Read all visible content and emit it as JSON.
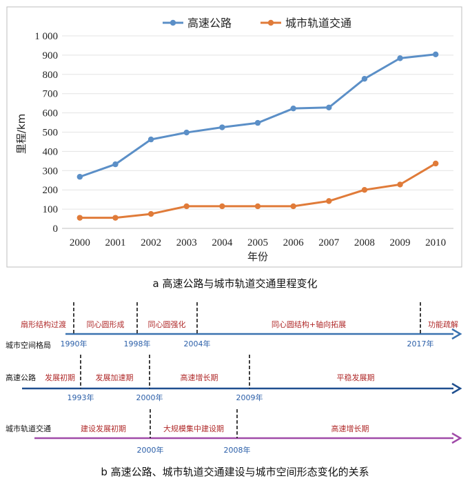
{
  "chart_data": {
    "type": "line",
    "x": [
      "2000",
      "2001",
      "2002",
      "2003",
      "2004",
      "2005",
      "2006",
      "2007",
      "2008",
      "2009",
      "2010"
    ],
    "series": [
      {
        "name": "高速公路",
        "color": "#5b8fc7",
        "values": [
          268,
          333,
          462,
          498,
          525,
          548,
          623,
          628,
          777,
          884,
          904
        ]
      },
      {
        "name": "城市轨道交通",
        "color": "#e07b39",
        "values": [
          55,
          55,
          75,
          115,
          115,
          115,
          115,
          142,
          200,
          228,
          337
        ]
      }
    ],
    "ylim": [
      0,
      1000
    ],
    "yticks": [
      "0",
      "100",
      "200",
      "300",
      "400",
      "500",
      "600",
      "700",
      "800",
      "900",
      "1 000"
    ],
    "ylabel": "里程/km",
    "xlabel": "年份",
    "grid": true,
    "legend": "top-center"
  },
  "caption_a": "a 高速公路与城市轨道交通里程变化",
  "caption_b": "b 高速公路、城市轨道交通建设与城市空间形态变化的关系",
  "timeline": {
    "rows": [
      {
        "title": "城市空间格局",
        "color": "#3a72b0",
        "years": [
          1990,
          1998,
          2004,
          2017
        ],
        "year_labels": [
          "1990年",
          "1998年",
          "2004年",
          "2017年"
        ],
        "phases": [
          "扇形结构过渡",
          "同心圆形成",
          "同心圆强化",
          "同心圆结构+轴向拓展",
          "功能疏解"
        ]
      },
      {
        "title": "高速公路",
        "color": "#1f4f8f",
        "years": [
          1993,
          2000,
          2009
        ],
        "year_labels": [
          "1993年",
          "2000年",
          "2009年"
        ],
        "phases": [
          "发展初期",
          "发展加速期",
          "高速增长期",
          "平稳发展期"
        ]
      },
      {
        "title": "城市轨道交通",
        "color": "#a04aa8",
        "years": [
          2000,
          2008
        ],
        "year_labels": [
          "2000年",
          "2008年"
        ],
        "phases": [
          "建设发展初期",
          "大规模集中建设期",
          "高速增长期"
        ]
      }
    ]
  }
}
